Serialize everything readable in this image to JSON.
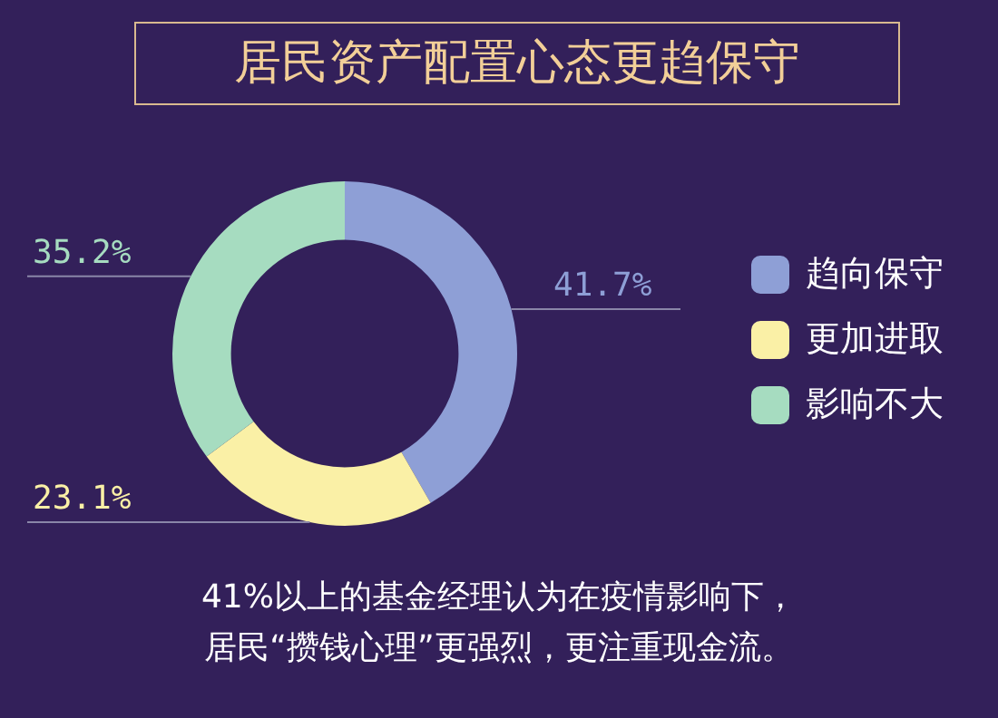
{
  "chart_data": {
    "type": "donut",
    "title": "居民资产配置心态更趋保守",
    "categories": [
      "趋向保守",
      "更加进取",
      "影响不大"
    ],
    "values": [
      41.7,
      23.1,
      35.2
    ],
    "colors": [
      "#8e9fd6",
      "#faf0a6",
      "#a6dcc0"
    ],
    "value_labels": [
      "41.7%",
      "23.1%",
      "35.2%"
    ],
    "legend": "right",
    "annotations": [
      "41%以上的基金经理认为在疫情影响下，",
      "居民“攒钱心理”更强烈，更注重现金流。"
    ]
  }
}
